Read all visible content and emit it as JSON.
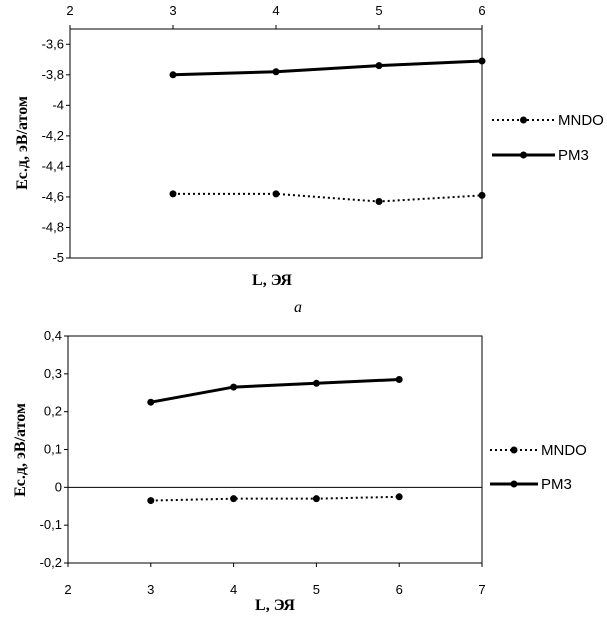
{
  "chart_data": [
    {
      "type": "line",
      "panel_label": "a",
      "xlabel": "L, ЭЯ",
      "ylabel": "Ес.д, эВ/атом",
      "xlim": [
        2,
        6
      ],
      "x_ticks": [
        "2",
        "3",
        "4",
        "5",
        "6"
      ],
      "x_axis_position": "top",
      "ylim": [
        -5,
        -3.5
      ],
      "y_ticks": [
        "-3,6",
        "-3,8",
        "-4",
        "-4,2",
        "-4,4",
        "-4,6",
        "-4,8",
        "-5"
      ],
      "y_tick_values": [
        -3.6,
        -3.8,
        -4,
        -4.2,
        -4.4,
        -4.6,
        -4.8,
        -5
      ],
      "x": [
        3,
        4,
        5,
        6
      ],
      "series": [
        {
          "name": "MNDO",
          "style": "dotted",
          "values": [
            -4.58,
            -4.58,
            -4.63,
            -4.59
          ]
        },
        {
          "name": "PM3",
          "style": "solid",
          "values": [
            -3.8,
            -3.78,
            -3.74,
            -3.71
          ]
        }
      ],
      "legend": "right"
    },
    {
      "type": "line",
      "xlabel": "L, ЭЯ",
      "ylabel": "Ес.д, эВ/атом",
      "xlim": [
        2,
        7
      ],
      "x_ticks": [
        "2",
        "3",
        "4",
        "5",
        "6",
        "7"
      ],
      "x_axis_position": "bottom",
      "ylim": [
        -0.2,
        0.4
      ],
      "y_ticks": [
        "0,4",
        "0,3",
        "0,2",
        "0,1",
        "0",
        "-0,1",
        "-0,2"
      ],
      "y_tick_values": [
        0.4,
        0.3,
        0.2,
        0.1,
        0,
        -0.1,
        -0.2
      ],
      "x": [
        3,
        4,
        5,
        6
      ],
      "series": [
        {
          "name": "MNDO",
          "style": "dotted",
          "values": [
            -0.035,
            -0.03,
            -0.03,
            -0.025
          ]
        },
        {
          "name": "PM3",
          "style": "solid",
          "values": [
            0.225,
            0.265,
            0.275,
            0.285
          ]
        }
      ],
      "legend": "right"
    }
  ]
}
